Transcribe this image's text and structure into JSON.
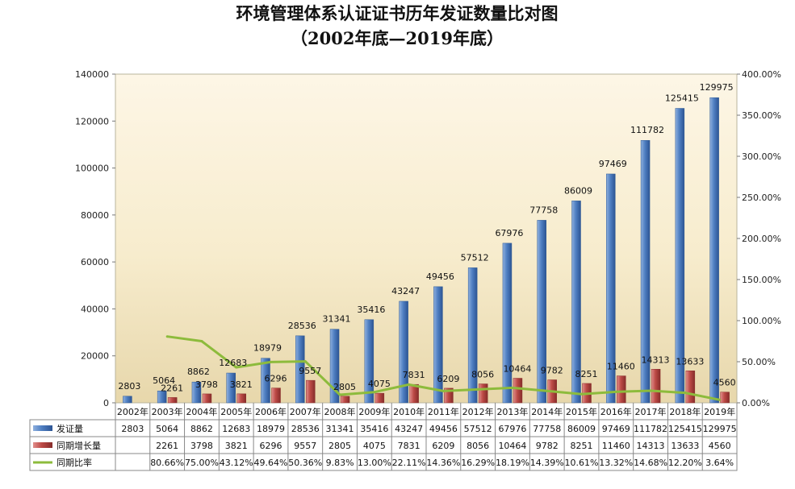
{
  "chart_data": {
    "type": "bar",
    "title": "环境管理体系认证证书历年发证数量比对图",
    "subtitle": "（2002年底—2019年底）",
    "categories": [
      "2002年",
      "2003年",
      "2004年",
      "2005年",
      "2006年",
      "2007年",
      "2008年",
      "2009年",
      "2010年",
      "2011年",
      "2012年",
      "2013年",
      "2014年",
      "2015年",
      "2016年",
      "2017年",
      "2018年",
      "2019年"
    ],
    "series": [
      {
        "name": "发证量",
        "kind": "bar",
        "color": "#4a7ebb",
        "values": [
          2803,
          5064,
          8862,
          12683,
          18979,
          28536,
          31341,
          35416,
          43247,
          49456,
          57512,
          67976,
          77758,
          86009,
          97469,
          111782,
          125415,
          129975
        ]
      },
      {
        "name": "同期增长量",
        "kind": "bar",
        "color": "#b84542",
        "values": [
          null,
          2261,
          3798,
          3821,
          6296,
          9557,
          2805,
          4075,
          7831,
          6209,
          8056,
          10464,
          9782,
          8251,
          11460,
          14313,
          13633,
          4560
        ]
      },
      {
        "name": "同期比率",
        "kind": "line",
        "color": "#8dbb3c",
        "axis": "right",
        "values": [
          null,
          80.66,
          75.0,
          43.12,
          49.64,
          50.36,
          9.83,
          13.0,
          22.11,
          14.36,
          16.29,
          18.19,
          14.39,
          10.61,
          13.32,
          14.68,
          12.2,
          3.64
        ]
      }
    ],
    "data_labels": {
      "发证量": [
        "2803",
        "5064",
        "8862",
        "12683",
        "18979",
        "28536",
        "31341",
        "35416",
        "43247",
        "49456",
        "57512",
        "67976",
        "77758",
        "86009",
        "97469",
        "111782",
        "125415",
        "129975"
      ],
      "同期增长量": [
        "",
        "2261",
        "3798",
        "3821",
        "6296",
        "9557",
        "2805",
        "4075",
        "7831",
        "6209",
        "8056",
        "10464",
        "9782",
        "8251",
        "11460",
        "14313",
        "13633",
        "4560"
      ]
    },
    "table_rows": [
      {
        "label": "发证量",
        "cells": [
          "2803",
          "5064",
          "8862",
          "12683",
          "18979",
          "28536",
          "31341",
          "35416",
          "43247",
          "49456",
          "57512",
          "67976",
          "77758",
          "86009",
          "97469",
          "111782",
          "125415",
          "129975"
        ]
      },
      {
        "label": "同期增长量",
        "cells": [
          "",
          "2261",
          "3798",
          "3821",
          "6296",
          "9557",
          "2805",
          "4075",
          "7831",
          "6209",
          "8056",
          "10464",
          "9782",
          "8251",
          "11460",
          "14313",
          "13633",
          "4560"
        ]
      },
      {
        "label": "同期比率",
        "cells": [
          "",
          "80.66%",
          "75.00%",
          "43.12%",
          "49.64%",
          "50.36%",
          "9.83%",
          "13.00%",
          "22.11%",
          "14.36%",
          "16.29%",
          "18.19%",
          "14.39%",
          "10.61%",
          "13.32%",
          "14.68%",
          "12.20%",
          "3.64%"
        ]
      }
    ],
    "y_left": {
      "min": 0,
      "max": 140000,
      "step": 20000,
      "ticks": [
        "0",
        "20000",
        "40000",
        "60000",
        "80000",
        "100000",
        "120000",
        "140000"
      ]
    },
    "y_right": {
      "min": 0,
      "max": 400,
      "step": 50,
      "ticks": [
        "0.00%",
        "50.00%",
        "100.00%",
        "150.00%",
        "200.00%",
        "250.00%",
        "300.00%",
        "350.00%",
        "400.00%"
      ]
    },
    "legend_placement": "data-table"
  }
}
